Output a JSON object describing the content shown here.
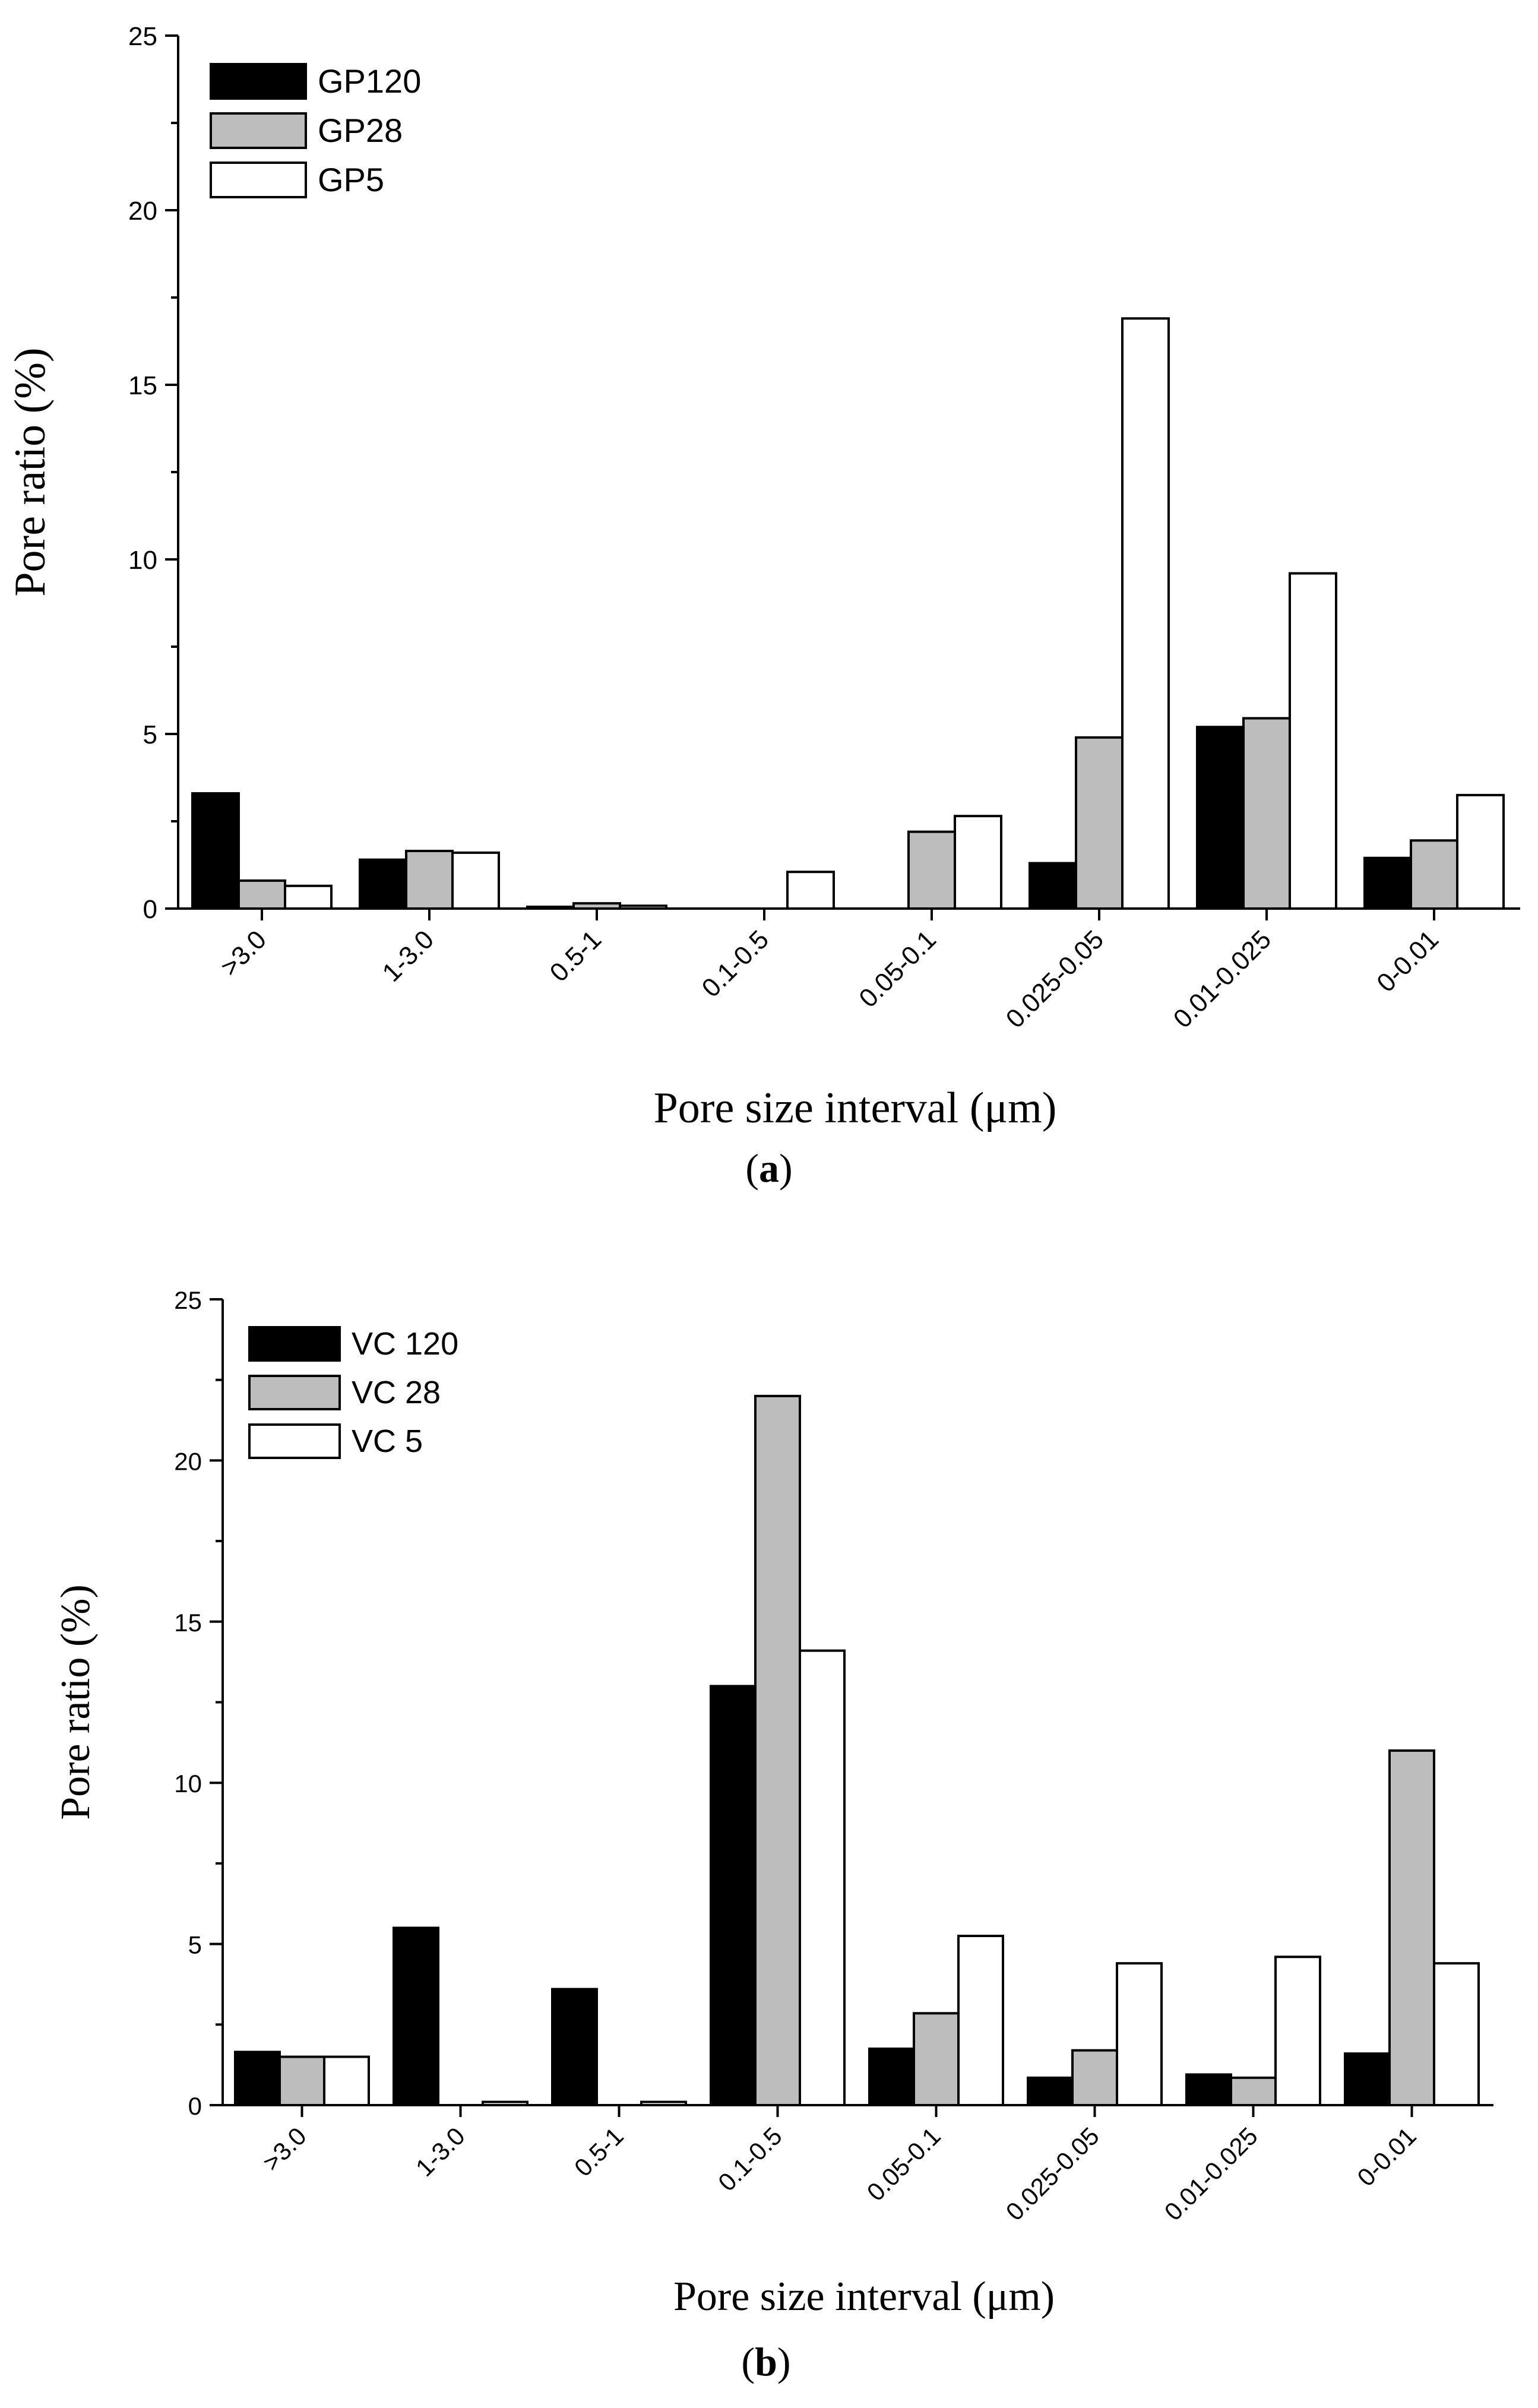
{
  "chart_data": [
    {
      "type": "bar",
      "panel_label": "a",
      "title": "",
      "xlabel": "Pore size interval (μm)",
      "ylabel": "Pore ratio (%)",
      "ylim": [
        0,
        25
      ],
      "yticks": [
        "0",
        "5",
        "10",
        "15",
        "20",
        "25"
      ],
      "categories": [
        ">3.0",
        "1-3.0",
        "0.5-1",
        "0.1-0.5",
        "0.05-0.1",
        "0.025-0.05",
        "0.01-0.025",
        "0-0.01"
      ],
      "legend_position": "top-left",
      "grid": false,
      "series": [
        {
          "name": "GP120",
          "color": "#000000",
          "values": [
            3.3,
            1.4,
            0.05,
            0,
            0,
            1.3,
            5.2,
            1.45
          ]
        },
        {
          "name": "GP28",
          "color": "#bdbdbd",
          "values": [
            0.8,
            1.65,
            0.15,
            0,
            2.2,
            4.9,
            5.45,
            1.95
          ]
        },
        {
          "name": "GP5",
          "color": "#ffffff",
          "values": [
            0.65,
            1.6,
            0.08,
            1.05,
            2.65,
            16.9,
            9.6,
            3.25
          ]
        }
      ]
    },
    {
      "type": "bar",
      "panel_label": "b",
      "title": "",
      "xlabel": "Pore size interval (μm)",
      "ylabel": "Pore ratio (%)",
      "ylim": [
        0,
        25
      ],
      "yticks": [
        "0",
        "5",
        "10",
        "15",
        "20",
        "25"
      ],
      "categories": [
        ">3.0",
        "1-3.0",
        "0.5-1",
        "0.1-0.5",
        "0.05-0.1",
        "0.025-0.05",
        "0.01-0.025",
        "0-0.01"
      ],
      "legend_position": "top-left",
      "grid": false,
      "series": [
        {
          "name": "VC 120",
          "color": "#000000",
          "values": [
            1.65,
            5.5,
            3.6,
            13.0,
            1.75,
            0.85,
            0.95,
            1.6
          ]
        },
        {
          "name": "VC 28",
          "color": "#bdbdbd",
          "values": [
            1.5,
            0,
            0,
            22.0,
            2.85,
            1.7,
            0.85,
            11.0
          ]
        },
        {
          "name": "VC 5",
          "color": "#ffffff",
          "values": [
            1.5,
            0.1,
            0.1,
            14.1,
            5.25,
            4.4,
            4.6,
            4.4
          ]
        }
      ]
    }
  ]
}
